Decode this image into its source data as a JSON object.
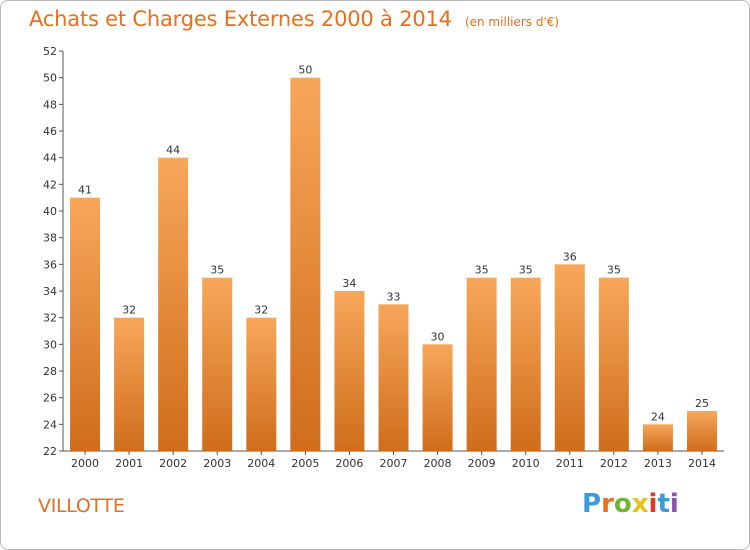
{
  "title": "Achats et Charges Externes 2000 à 2014",
  "subtitle": "(en milliers d'€)",
  "commune": "VILLOTTE",
  "logo": {
    "text": "Proxiti",
    "letter_colors": [
      "#3b9ad9",
      "#e96f1f",
      "#6fb536",
      "#e8c21a",
      "#d73a2b",
      "#3b9ad9",
      "#8e4fb3"
    ]
  },
  "colors": {
    "accent": "#e96f1f",
    "bar_light": "#f7a75a",
    "bar_dark": "#cf6d1b",
    "axis": "#555555",
    "grid": "#dddddd"
  },
  "chart_data": {
    "type": "bar",
    "title": "Achats et Charges Externes 2000 à 2014",
    "subtitle": "(en milliers d'€)",
    "xlabel": "",
    "ylabel": "",
    "categories": [
      "2000",
      "2001",
      "2002",
      "2003",
      "2004",
      "2005",
      "2006",
      "2007",
      "2008",
      "2009",
      "2010",
      "2011",
      "2012",
      "2013",
      "2014"
    ],
    "values": [
      41,
      32,
      44,
      35,
      32,
      50,
      34,
      33,
      30,
      35,
      35,
      36,
      35,
      24,
      25
    ],
    "ylim": [
      22,
      52
    ],
    "yticks": [
      22,
      24,
      26,
      28,
      30,
      32,
      34,
      36,
      38,
      40,
      42,
      44,
      46,
      48,
      50,
      52
    ],
    "grid": false,
    "data_labels": true
  }
}
